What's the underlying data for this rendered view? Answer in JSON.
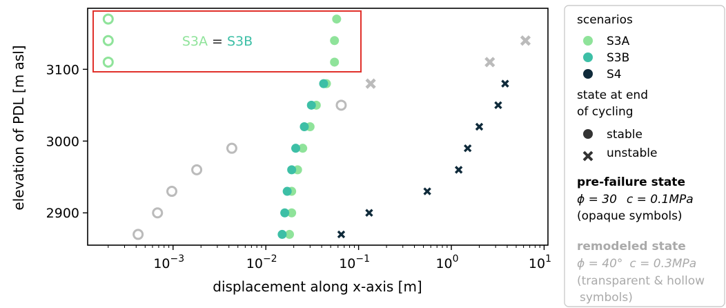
{
  "chart_data": {
    "type": "scatter",
    "xscale": "log",
    "xlabel": "displacement along x-axis [m]",
    "ylabel": "elevation of PDL [m asl]",
    "xlim": [
      0.00012,
      11
    ],
    "ylim": [
      2855,
      3185
    ],
    "xticks": [
      {
        "value": 0.001,
        "base": "10",
        "exp": "−3"
      },
      {
        "value": 0.01,
        "base": "10",
        "exp": "−2"
      },
      {
        "value": 0.1,
        "base": "10",
        "exp": "−1"
      },
      {
        "value": 1,
        "base": "10",
        "exp": "0"
      },
      {
        "value": 10,
        "base": "10",
        "exp": "1"
      }
    ],
    "yticks": [
      2900,
      3000,
      3100
    ],
    "series": [
      {
        "name": "S3A",
        "color": "#8fe39a",
        "marker": "circle",
        "state": "prefailure",
        "points": [
          [
            0.018,
            2870
          ],
          [
            0.019,
            2900
          ],
          [
            0.019,
            2930
          ],
          [
            0.022,
            2960
          ],
          [
            0.025,
            2990
          ],
          [
            0.03,
            3020
          ],
          [
            0.035,
            3050
          ],
          [
            0.045,
            3080
          ],
          [
            0.055,
            3110
          ],
          [
            0.055,
            3140
          ],
          [
            0.058,
            3170
          ]
        ]
      },
      {
        "name": "S3B",
        "color": "#3dbfa6",
        "marker": "circle",
        "state": "prefailure",
        "points": [
          [
            0.015,
            2870
          ],
          [
            0.016,
            2900
          ],
          [
            0.017,
            2930
          ],
          [
            0.019,
            2960
          ],
          [
            0.021,
            2990
          ],
          [
            0.026,
            3020
          ],
          [
            0.031,
            3050
          ],
          [
            0.042,
            3080
          ]
        ]
      },
      {
        "name": "S4",
        "color": "#0f2a3a",
        "marker": "x",
        "state": "prefailure",
        "points": [
          [
            0.065,
            2870
          ],
          [
            0.13,
            2900
          ],
          [
            0.55,
            2930
          ],
          [
            1.2,
            2960
          ],
          [
            1.5,
            2990
          ],
          [
            2.0,
            3020
          ],
          [
            3.2,
            3050
          ],
          [
            3.8,
            3080
          ]
        ]
      },
      {
        "name": "remodeled stable",
        "color": "#bbbbbb",
        "marker": "hollow-circle",
        "state": "remodeled",
        "points": [
          [
            0.00042,
            2870
          ],
          [
            0.00068,
            2900
          ],
          [
            0.00097,
            2930
          ],
          [
            0.0018,
            2960
          ],
          [
            0.0043,
            2990
          ],
          [
            0.065,
            3050
          ]
        ]
      },
      {
        "name": "remodeled unstable",
        "color": "#bbbbbb",
        "marker": "x",
        "state": "remodeled",
        "points": [
          [
            0.135,
            3080
          ],
          [
            2.6,
            3110
          ],
          [
            6.3,
            3140
          ]
        ]
      },
      {
        "name": "S3A remodeled",
        "color": "#8fe39a",
        "marker": "hollow-circle",
        "state": "remodeled",
        "points": [
          [
            0.0002,
            3110
          ],
          [
            0.0002,
            3140
          ],
          [
            0.0002,
            3170
          ]
        ]
      }
    ],
    "annotation": {
      "left": "S3A",
      "eq": " = ",
      "right": "S3B",
      "left_color": "#8fe39a",
      "right_color": "#3dbfa6",
      "box_color": "#e0302a"
    }
  },
  "legend": {
    "scenarios_title": "scenarios",
    "scenarios": [
      {
        "label": "S3A",
        "color": "#8fe39a"
      },
      {
        "label": "S3B",
        "color": "#3dbfa6"
      },
      {
        "label": "S4",
        "color": "#0f2a3a"
      }
    ],
    "state_title_1": "state at end",
    "state_title_2": "of cycling",
    "stable": "stable",
    "unstable": "unstable",
    "prefailure_title": "pre-failure state",
    "prefailure_phi": "ϕ = 30",
    "prefailure_c": "c = 0.1MPa",
    "prefailure_note": "(opaque symbols)",
    "remodeled_title": "remodeled state",
    "remodeled_phi": "ϕ = 40°",
    "remodeled_c": "c = 0.3MPa",
    "remodeled_note_1": "(transparent & hollow",
    "remodeled_note_2": "symbols)"
  }
}
